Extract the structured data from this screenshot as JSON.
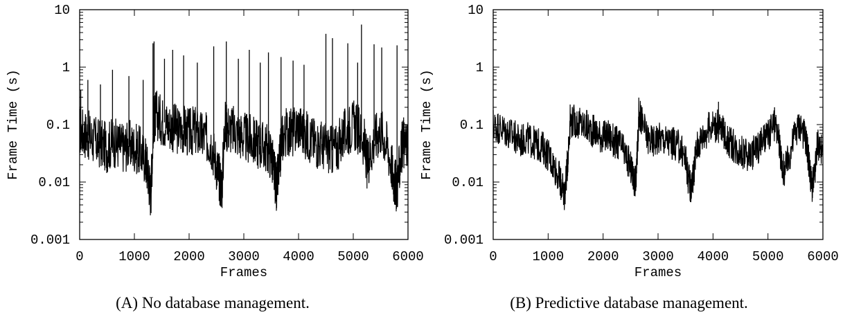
{
  "chart_data": [
    {
      "type": "line",
      "caption": "(A) No database management.",
      "xlabel": "Frames",
      "ylabel": "Frame Time (s)",
      "xlim": [
        0,
        6000
      ],
      "ylim": [
        0.001,
        10
      ],
      "yscale": "log",
      "xticks": [
        "0",
        "1000",
        "2000",
        "3000",
        "4000",
        "5000",
        "6000"
      ],
      "yticks": [
        "0.001",
        "0.01",
        "0.1",
        "1",
        "10"
      ],
      "grid": false,
      "x": [
        0,
        100,
        200,
        300,
        400,
        500,
        600,
        700,
        800,
        900,
        1000,
        1100,
        1200,
        1250,
        1300,
        1350,
        1400,
        1500,
        1600,
        1700,
        1800,
        1900,
        2000,
        2100,
        2200,
        2300,
        2400,
        2500,
        2550,
        2600,
        2650,
        2700,
        2800,
        2900,
        3000,
        3100,
        3200,
        3300,
        3400,
        3500,
        3550,
        3600,
        3650,
        3700,
        3800,
        3900,
        4000,
        4100,
        4200,
        4300,
        4400,
        4500,
        4600,
        4700,
        4800,
        4900,
        5000,
        5100,
        5200,
        5250,
        5300,
        5400,
        5500,
        5600,
        5700,
        5750,
        5800,
        5850,
        5900,
        6000
      ],
      "values": [
        0.08,
        0.07,
        0.06,
        0.05,
        0.045,
        0.04,
        0.05,
        0.045,
        0.04,
        0.045,
        0.04,
        0.035,
        0.025,
        0.015,
        0.006,
        0.12,
        0.15,
        0.12,
        0.1,
        0.09,
        0.08,
        0.085,
        0.07,
        0.08,
        0.065,
        0.06,
        0.05,
        0.02,
        0.012,
        0.008,
        0.1,
        0.09,
        0.08,
        0.07,
        0.06,
        0.055,
        0.05,
        0.045,
        0.04,
        0.03,
        0.015,
        0.008,
        0.02,
        0.06,
        0.08,
        0.07,
        0.1,
        0.07,
        0.06,
        0.05,
        0.045,
        0.04,
        0.035,
        0.04,
        0.06,
        0.08,
        0.1,
        0.08,
        0.05,
        0.02,
        0.03,
        0.06,
        0.08,
        0.05,
        0.02,
        0.01,
        0.008,
        0.02,
        0.05,
        0.04
      ],
      "spikes_x": [
        20,
        150,
        380,
        600,
        900,
        1160,
        1340,
        1360,
        1550,
        1700,
        1900,
        2150,
        2450,
        2680,
        2900,
        3100,
        3300,
        3450,
        3680,
        3900,
        4100,
        4500,
        4620,
        4900,
        5080,
        5150,
        5380,
        5520,
        5800
      ],
      "spikes_values": [
        0.4,
        0.6,
        0.5,
        0.9,
        0.7,
        0.6,
        2.6,
        2.8,
        1.4,
        2.0,
        1.6,
        1.2,
        2.3,
        2.8,
        1.4,
        2.0,
        1.2,
        1.8,
        1.5,
        1.3,
        1.1,
        3.8,
        3.2,
        2.6,
        1.2,
        5.5,
        2.5,
        2.2,
        2.4
      ]
    },
    {
      "type": "line",
      "caption": "(B) Predictive database management.",
      "xlabel": "Frames",
      "ylabel": "Frame Time (s)",
      "xlim": [
        0,
        6000
      ],
      "ylim": [
        0.001,
        10
      ],
      "yscale": "log",
      "xticks": [
        "0",
        "1000",
        "2000",
        "3000",
        "4000",
        "5000",
        "6000"
      ],
      "yticks": [
        "0.001",
        "0.01",
        "0.1",
        "1",
        "10"
      ],
      "grid": false,
      "x": [
        0,
        100,
        200,
        300,
        400,
        500,
        600,
        700,
        800,
        900,
        1000,
        1100,
        1200,
        1250,
        1300,
        1350,
        1400,
        1500,
        1600,
        1700,
        1800,
        1900,
        2000,
        2100,
        2200,
        2300,
        2400,
        2500,
        2550,
        2600,
        2650,
        2700,
        2800,
        2900,
        3000,
        3100,
        3200,
        3300,
        3400,
        3500,
        3550,
        3600,
        3650,
        3700,
        3800,
        3900,
        4000,
        4100,
        4200,
        4300,
        4400,
        4500,
        4600,
        4700,
        4800,
        4900,
        5000,
        5100,
        5200,
        5250,
        5300,
        5400,
        5500,
        5600,
        5700,
        5750,
        5800,
        5850,
        5900,
        6000
      ],
      "values": [
        0.1,
        0.09,
        0.08,
        0.07,
        0.06,
        0.05,
        0.06,
        0.05,
        0.045,
        0.04,
        0.03,
        0.02,
        0.012,
        0.008,
        0.006,
        0.02,
        0.12,
        0.11,
        0.1,
        0.09,
        0.08,
        0.07,
        0.06,
        0.065,
        0.05,
        0.045,
        0.03,
        0.018,
        0.012,
        0.01,
        0.15,
        0.12,
        0.06,
        0.05,
        0.06,
        0.055,
        0.05,
        0.045,
        0.04,
        0.025,
        0.012,
        0.008,
        0.015,
        0.04,
        0.06,
        0.08,
        0.1,
        0.09,
        0.07,
        0.05,
        0.04,
        0.035,
        0.03,
        0.03,
        0.04,
        0.05,
        0.06,
        0.1,
        0.06,
        0.02,
        0.015,
        0.03,
        0.08,
        0.1,
        0.05,
        0.02,
        0.008,
        0.012,
        0.05,
        0.03
      ],
      "spikes_x": [
        1700,
        2680,
        4100,
        5120
      ],
      "spikes_values": [
        0.18,
        0.22,
        0.25,
        0.2
      ]
    }
  ]
}
